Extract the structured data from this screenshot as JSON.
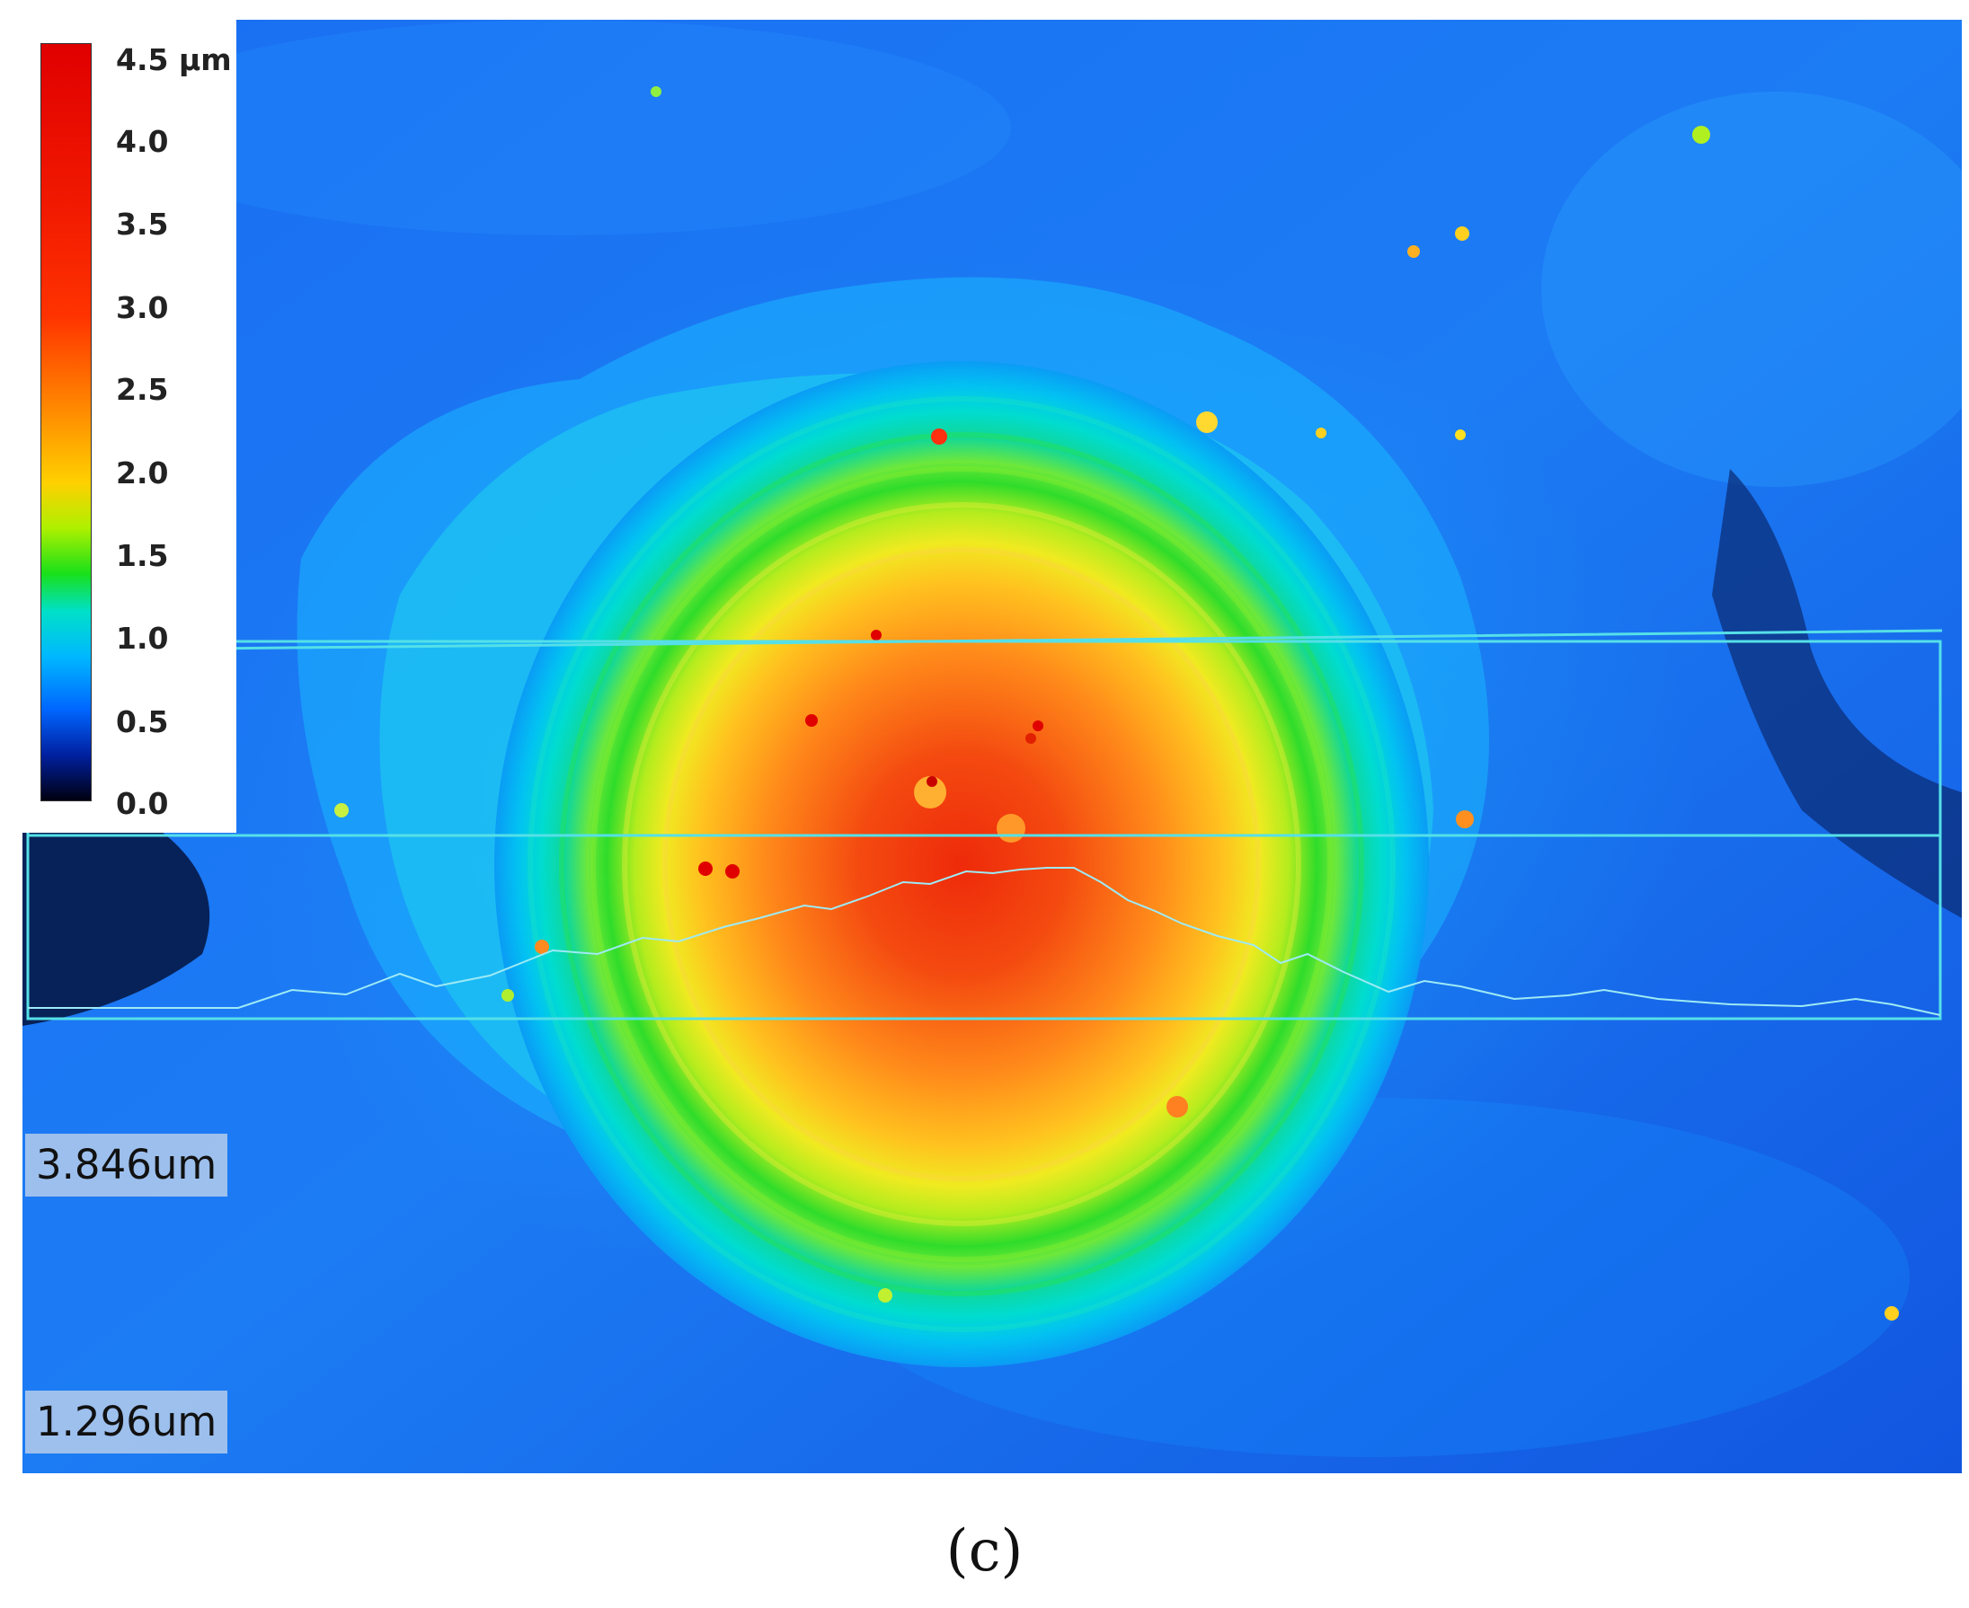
{
  "colorbar": {
    "ticks": [
      "4.5 µm",
      "4.0",
      "3.5",
      "3.0",
      "2.5",
      "2.0",
      "1.5",
      "1.0",
      "0.5",
      "0.0"
    ]
  },
  "profile": {
    "max_label": "3.846um",
    "min_label": "1.296um"
  },
  "caption": "(c)",
  "colors": {
    "background": "#1f6df0",
    "profile_line": "#55e0e8",
    "peak": "#f03a10"
  }
}
